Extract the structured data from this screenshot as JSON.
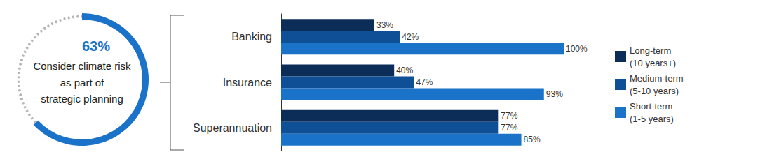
{
  "chart_data": [
    {
      "type": "gauge",
      "title": "Consider climate risk\nas part of\nstrategic planning",
      "value": 63,
      "value_label": "63%",
      "ylim": [
        0,
        100
      ],
      "color": "#1a73c8"
    },
    {
      "type": "bar",
      "orientation": "horizontal",
      "categories": [
        "Banking",
        "Insurance",
        "Superannuation"
      ],
      "series": [
        {
          "name": "Long-term\n(10 years+)",
          "color": "#0c2d57",
          "values": [
            33,
            40,
            77
          ],
          "value_labels": [
            "33%",
            "40%",
            "77%"
          ]
        },
        {
          "name": "Medium-term\n(5-10 years)",
          "color": "#0f4f96",
          "values": [
            42,
            47,
            77
          ],
          "value_labels": [
            "42%",
            "47%",
            "77%"
          ]
        },
        {
          "name": "Short-term\n(1-5 years)",
          "color": "#1a73c8",
          "values": [
            100,
            93,
            85
          ],
          "value_labels": [
            "100%",
            "93%",
            "85%"
          ]
        }
      ],
      "xlim": [
        0,
        100
      ],
      "grid": false,
      "tick_labels": "y",
      "data_labels": true,
      "legend": "right"
    }
  ]
}
